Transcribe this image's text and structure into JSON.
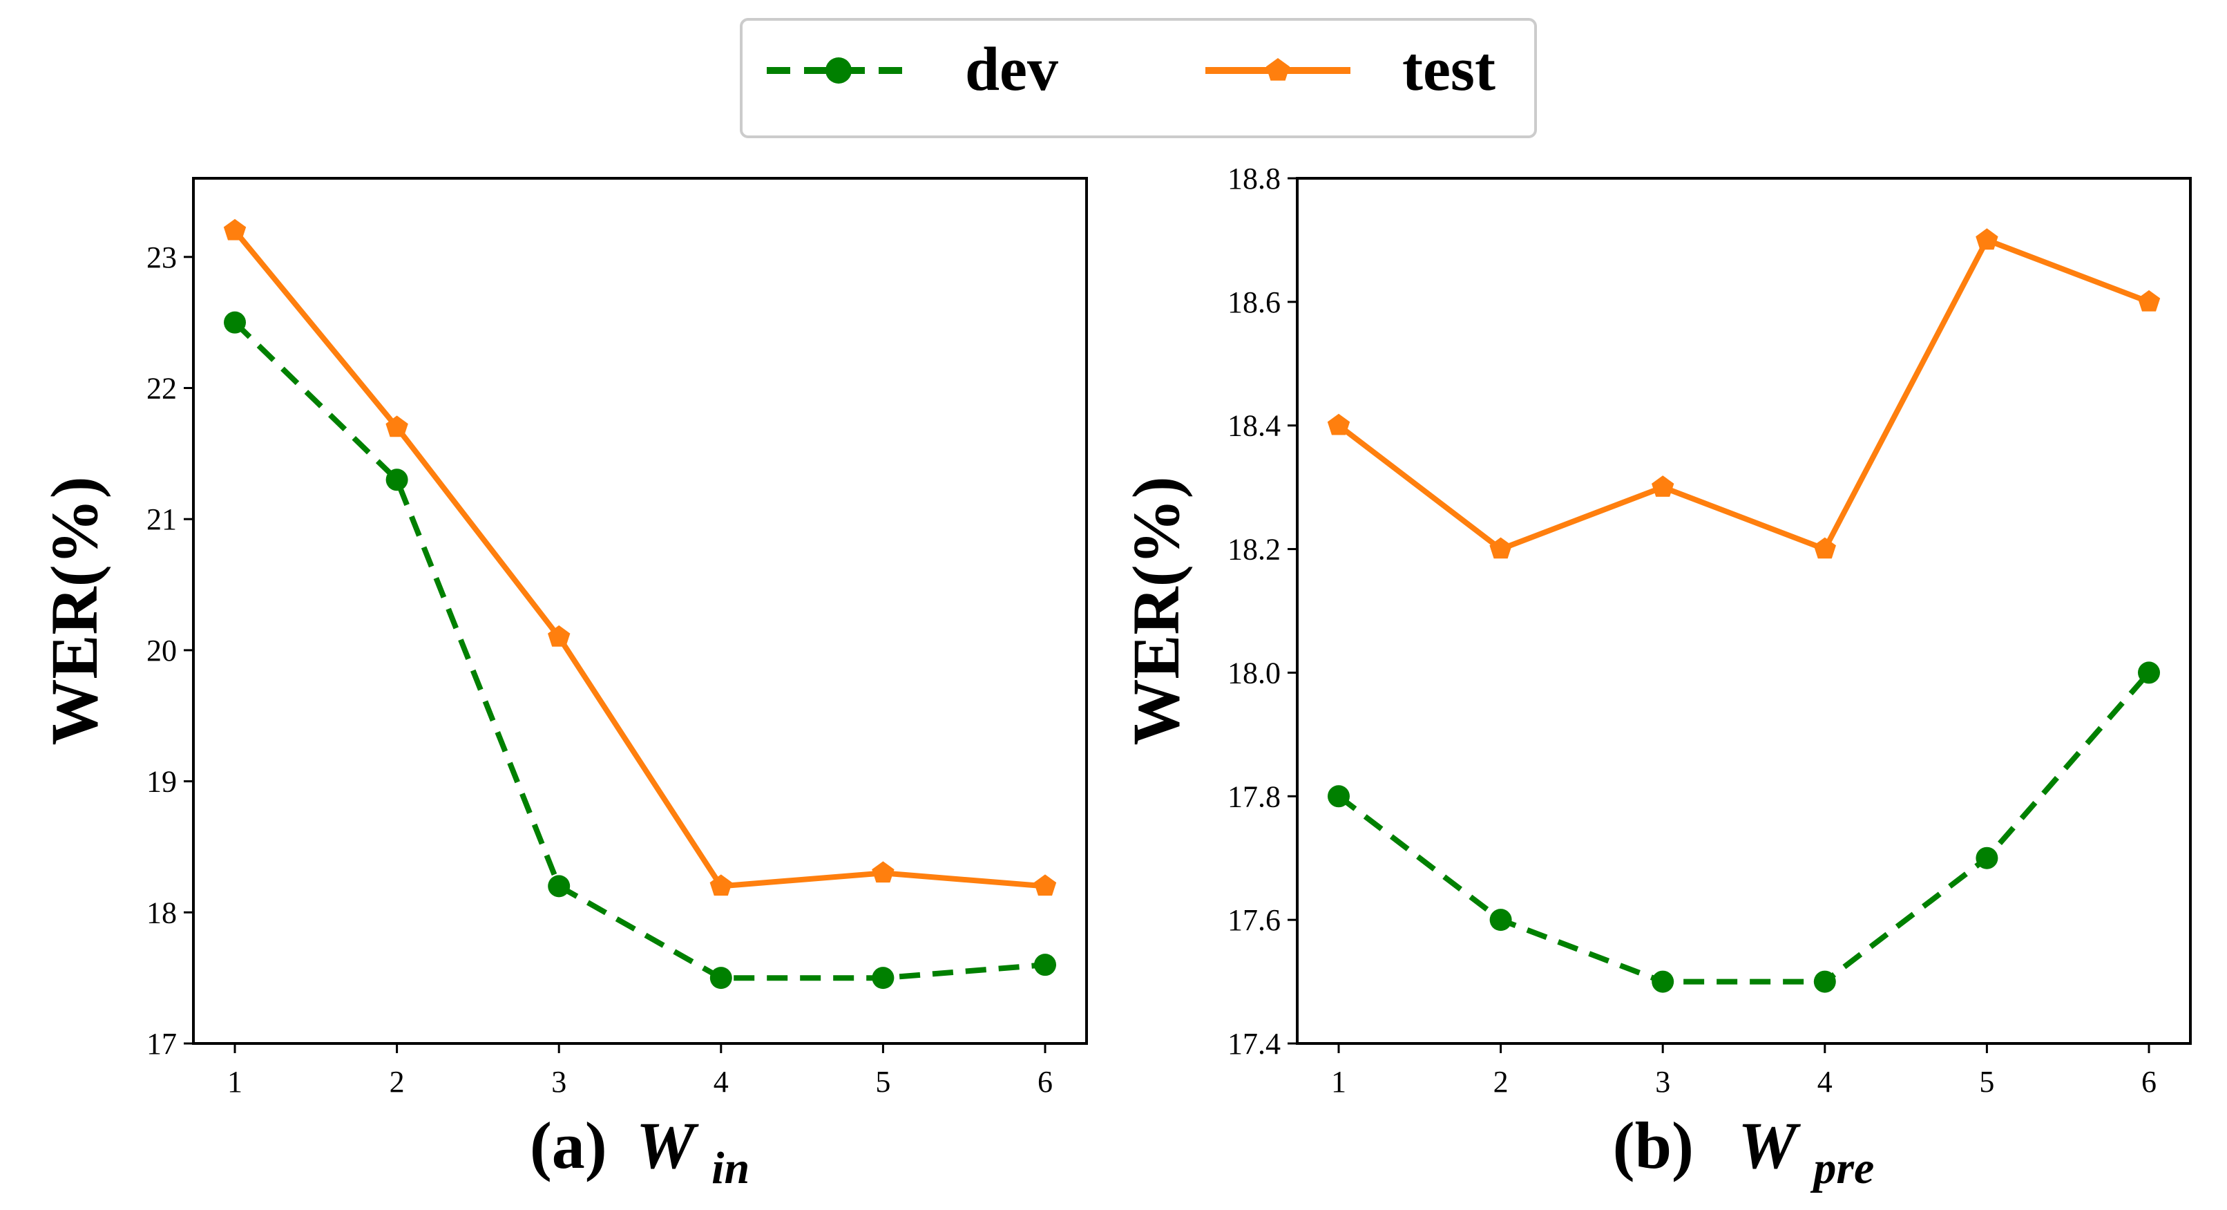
{
  "colors": {
    "dev": "#008000",
    "test": "#ff7f0e",
    "axis": "#000000"
  },
  "legend": {
    "position": "top-center",
    "items": [
      {
        "key": "dev",
        "label": "dev",
        "color": "#008000",
        "linestyle": "dashed",
        "marker": "circle"
      },
      {
        "key": "test",
        "label": "test",
        "color": "#ff7f0e",
        "linestyle": "solid",
        "marker": "pentagon"
      }
    ]
  },
  "chart_data": [
    {
      "type": "line",
      "panel_label": "(a)",
      "xlabel_symbol": "W",
      "xlabel_subscript": "in",
      "ylabel": "WER(%)",
      "x": [
        1,
        2,
        3,
        4,
        5,
        6
      ],
      "xticks": [
        "1",
        "2",
        "3",
        "4",
        "5",
        "6"
      ],
      "ylim": [
        17,
        23.6
      ],
      "yticks": [
        "17",
        "18",
        "19",
        "20",
        "21",
        "22",
        "23"
      ],
      "series": [
        {
          "name": "dev",
          "values": [
            22.5,
            21.3,
            18.2,
            17.5,
            17.5,
            17.6
          ]
        },
        {
          "name": "test",
          "values": [
            23.2,
            21.7,
            20.1,
            18.2,
            18.3,
            18.2
          ]
        }
      ]
    },
    {
      "type": "line",
      "panel_label": "(b)",
      "xlabel_symbol": "W",
      "xlabel_subscript": "pre",
      "ylabel": "WER(%)",
      "x": [
        1,
        2,
        3,
        4,
        5,
        6
      ],
      "xticks": [
        "1",
        "2",
        "3",
        "4",
        "5",
        "6"
      ],
      "ylim": [
        17.4,
        18.8
      ],
      "yticks": [
        "17.4",
        "17.6",
        "17.8",
        "18.0",
        "18.2",
        "18.4",
        "18.6",
        "18.8"
      ],
      "series": [
        {
          "name": "dev",
          "values": [
            17.8,
            17.6,
            17.5,
            17.5,
            17.7,
            18.0
          ]
        },
        {
          "name": "test",
          "values": [
            18.4,
            18.2,
            18.3,
            18.2,
            18.7,
            18.6
          ]
        }
      ]
    }
  ]
}
